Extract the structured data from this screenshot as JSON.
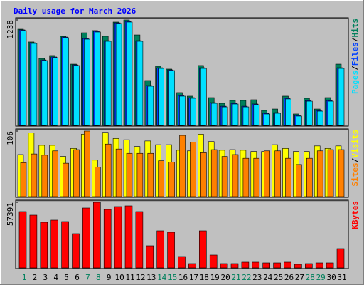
{
  "chart_data": [
    {
      "type": "bar",
      "title": "Daily usage for March 2026",
      "legend_separator": "/",
      "ylim": [
        0,
        1238
      ],
      "yticks": [
        1238
      ],
      "series": [
        {
          "name": "Hits",
          "color": "#00805c",
          "values": [
            1129,
            979,
            786,
            820,
            1046,
            719,
            1087,
            1113,
            1046,
            1213,
            1238,
            1062,
            527,
            694,
            661,
            385,
            343,
            703,
            326,
            259,
            293,
            293,
            301,
            176,
            192,
            343,
            134,
            318,
            192,
            326,
            719
          ]
        },
        {
          "name": "Files",
          "color": "#0040ff",
          "values": [
            1121,
            970,
            769,
            803,
            1037,
            711,
            1020,
            1104,
            995,
            1204,
            1221,
            995,
            468,
            677,
            652,
            351,
            326,
            677,
            267,
            225,
            259,
            225,
            251,
            142,
            150,
            318,
            117,
            292,
            175,
            292,
            677
          ]
        },
        {
          "name": "Pages",
          "color": "#00e0ff",
          "values": [
            1113,
            962,
            761,
            795,
            1029,
            703,
            1012,
            1096,
            987,
            1196,
            1213,
            987,
            460,
            669,
            644,
            343,
            318,
            669,
            259,
            217,
            251,
            217,
            243,
            134,
            142,
            310,
            109,
            284,
            167,
            284,
            669
          ]
        }
      ]
    },
    {
      "type": "bar",
      "legend_separator": "/",
      "ylim": [
        0,
        106
      ],
      "yticks": [
        106
      ],
      "series": [
        {
          "name": "Visits",
          "color": "#ffff00",
          "values": [
            68,
            103,
            83,
            83,
            65,
            78,
            101,
            59,
            104,
            94,
            92,
            81,
            90,
            84,
            84,
            75,
            74,
            101,
            89,
            75,
            76,
            75,
            73,
            73,
            84,
            78,
            73,
            73,
            82,
            78,
            82
          ]
        },
        {
          "name": "Sites",
          "color": "#ff8000",
          "values": [
            55,
            69,
            67,
            74,
            54,
            76,
            106,
            48,
            85,
            77,
            70,
            70,
            70,
            58,
            56,
            99,
            88,
            71,
            76,
            65,
            68,
            62,
            62,
            74,
            74,
            62,
            52,
            62,
            74,
            76,
            76
          ]
        }
      ]
    },
    {
      "type": "bar",
      "ylim": [
        0,
        57391
      ],
      "yticks": [
        57391
      ],
      "series": [
        {
          "name": "KBytes",
          "color": "#ff0000",
          "values": [
            49280,
            46161,
            39924,
            41795,
            40547,
            29943,
            52400,
            57391,
            51152,
            53647,
            54271,
            49280,
            19338,
            32438,
            31190,
            9981,
            3743,
            32438,
            11228,
            3743,
            3743,
            4990,
            4990,
            4367,
            4367,
            4990,
            3119,
            3743,
            4367,
            4367,
            16843
          ]
        }
      ],
      "categories": [
        "1",
        "2",
        "3",
        "4",
        "5",
        "6",
        "7",
        "8",
        "9",
        "10",
        "11",
        "12",
        "13",
        "14",
        "15",
        "16",
        "17",
        "18",
        "19",
        "20",
        "21",
        "22",
        "23",
        "24",
        "25",
        "26",
        "27",
        "28",
        "29",
        "30",
        "31"
      ],
      "weekend_categories": [
        "1",
        "7",
        "8",
        "14",
        "15",
        "21",
        "22",
        "28",
        "29"
      ],
      "weekend_color": "#00805c"
    }
  ]
}
